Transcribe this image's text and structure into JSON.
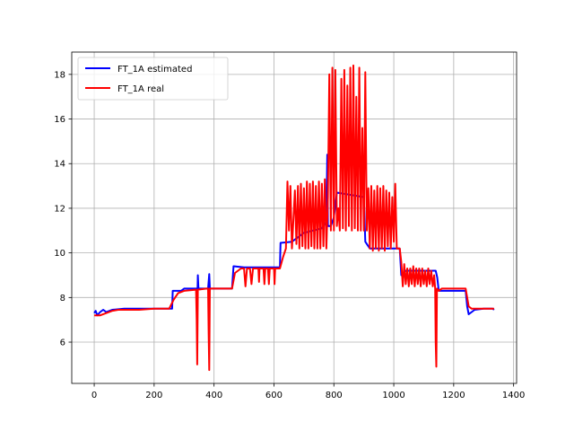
{
  "chart_data": {
    "type": "line",
    "title": "",
    "xlabel": "",
    "ylabel": "",
    "xlim": [
      -75,
      1410
    ],
    "ylim": [
      4.15,
      19.0
    ],
    "xticks": [
      0,
      200,
      400,
      600,
      800,
      1000,
      1200,
      1400
    ],
    "yticks": [
      6,
      8,
      10,
      12,
      14,
      16,
      18
    ],
    "grid": true,
    "legend_position": "upper-left",
    "series": [
      {
        "name": "FT_1A estimated",
        "color": "#0000ff",
        "segments": [
          [
            [
              0,
              7.3
            ],
            [
              5,
              7.4
            ],
            [
              10,
              7.2
            ],
            [
              20,
              7.35
            ],
            [
              30,
              7.45
            ],
            [
              40,
              7.35
            ],
            [
              60,
              7.45
            ],
            [
              100,
              7.5
            ],
            [
              150,
              7.5
            ],
            [
              200,
              7.5
            ],
            [
              255,
              7.5
            ],
            [
              260,
              7.5
            ],
            [
              262,
              8.3
            ],
            [
              290,
              8.3
            ],
            [
              300,
              8.4
            ],
            [
              345,
              8.4
            ],
            [
              346,
              9.0
            ],
            [
              348,
              8.4
            ],
            [
              380,
              8.4
            ],
            [
              384,
              9.05
            ],
            [
              386,
              8.4
            ],
            [
              460,
              8.4
            ],
            [
              465,
              9.4
            ],
            [
              500,
              9.35
            ],
            [
              600,
              9.35
            ],
            [
              620,
              9.35
            ],
            [
              622,
              10.45
            ],
            [
              660,
              10.5
            ],
            [
              700,
              10.9
            ],
            [
              760,
              11.1
            ],
            [
              775,
              11.4
            ],
            [
              778,
              14.4
            ],
            [
              780,
              11.2
            ],
            [
              790,
              11.2
            ],
            [
              800,
              11.6
            ],
            [
              810,
              12.7
            ],
            [
              900,
              12.5
            ],
            [
              905,
              10.5
            ],
            [
              920,
              10.2
            ],
            [
              1000,
              10.2
            ],
            [
              1020,
              10.2
            ],
            [
              1025,
              9.0
            ],
            [
              1040,
              9.2
            ],
            [
              1140,
              9.2
            ],
            [
              1145,
              8.9
            ],
            [
              1150,
              8.3
            ],
            [
              1240,
              8.3
            ],
            [
              1245,
              7.6
            ],
            [
              1250,
              7.25
            ],
            [
              1270,
              7.45
            ],
            [
              1300,
              7.5
            ],
            [
              1330,
              7.5
            ],
            [
              1335,
              7.45
            ]
          ]
        ]
      },
      {
        "name": "FT_1A real",
        "color": "#ff0000",
        "segments": [
          [
            [
              0,
              7.2
            ],
            [
              20,
              7.2
            ],
            [
              40,
              7.3
            ],
            [
              60,
              7.4
            ],
            [
              80,
              7.45
            ],
            [
              100,
              7.45
            ],
            [
              150,
              7.45
            ],
            [
              200,
              7.5
            ],
            [
              250,
              7.5
            ],
            [
              265,
              7.9
            ],
            [
              280,
              8.2
            ],
            [
              300,
              8.3
            ],
            [
              340,
              8.35
            ],
            [
              342,
              7.0
            ],
            [
              344,
              5.0
            ],
            [
              346,
              8.35
            ],
            [
              375,
              8.4
            ],
            [
              380,
              8.4
            ],
            [
              382,
              6.5
            ],
            [
              384,
              4.75
            ],
            [
              386,
              8.4
            ],
            [
              460,
              8.4
            ],
            [
              470,
              9.1
            ],
            [
              490,
              9.3
            ],
            [
              500,
              9.3
            ],
            [
              505,
              8.5
            ],
            [
              510,
              9.3
            ],
            [
              520,
              9.3
            ],
            [
              525,
              8.6
            ],
            [
              530,
              9.3
            ],
            [
              548,
              9.3
            ],
            [
              550,
              8.7
            ],
            [
              552,
              9.3
            ],
            [
              565,
              9.3
            ],
            [
              568,
              8.6
            ],
            [
              571,
              9.3
            ],
            [
              580,
              9.3
            ],
            [
              583,
              8.6
            ],
            [
              586,
              9.3
            ],
            [
              600,
              9.3
            ],
            [
              602,
              8.6
            ],
            [
              604,
              9.3
            ],
            [
              620,
              9.3
            ],
            [
              630,
              9.8
            ],
            [
              640,
              10.2
            ],
            [
              645,
              13.2
            ],
            [
              650,
              11.0
            ],
            [
              655,
              13.0
            ],
            [
              660,
              10.2
            ],
            [
              670,
              12.8
            ],
            [
              675,
              10.4
            ],
            [
              680,
              13.0
            ],
            [
              685,
              10.2
            ],
            [
              690,
              13.1
            ],
            [
              695,
              10.3
            ],
            [
              700,
              12.9
            ],
            [
              705,
              10.2
            ],
            [
              710,
              13.2
            ],
            [
              715,
              10.2
            ],
            [
              720,
              13.1
            ],
            [
              725,
              10.3
            ],
            [
              730,
              13.2
            ],
            [
              735,
              10.2
            ],
            [
              740,
              13.0
            ],
            [
              745,
              10.2
            ],
            [
              750,
              13.2
            ],
            [
              755,
              10.2
            ],
            [
              760,
              13.1
            ],
            [
              765,
              10.3
            ],
            [
              770,
              13.3
            ],
            [
              775,
              10.2
            ],
            [
              780,
              12.5
            ],
            [
              785,
              18.0
            ],
            [
              790,
              11.0
            ],
            [
              795,
              18.3
            ],
            [
              800,
              11.0
            ],
            [
              805,
              18.2
            ],
            [
              810,
              11.2
            ],
            [
              815,
              12.0
            ],
            [
              820,
              11.0
            ],
            [
              825,
              17.8
            ],
            [
              830,
              11.1
            ],
            [
              835,
              18.2
            ],
            [
              840,
              11.0
            ],
            [
              845,
              17.5
            ],
            [
              850,
              11.2
            ],
            [
              855,
              18.3
            ],
            [
              860,
              11.0
            ],
            [
              865,
              18.4
            ],
            [
              870,
              11.1
            ],
            [
              875,
              17.0
            ],
            [
              880,
              11.0
            ],
            [
              885,
              18.3
            ],
            [
              890,
              11.0
            ],
            [
              895,
              15.6
            ],
            [
              900,
              11.0
            ],
            [
              905,
              18.1
            ],
            [
              910,
              11.0
            ],
            [
              915,
              12.9
            ],
            [
              920,
              10.2
            ],
            [
              925,
              13.0
            ],
            [
              930,
              10.1
            ],
            [
              935,
              12.8
            ],
            [
              940,
              10.2
            ],
            [
              945,
              13.0
            ],
            [
              950,
              10.1
            ],
            [
              955,
              12.9
            ],
            [
              960,
              10.2
            ],
            [
              965,
              13.0
            ],
            [
              970,
              10.1
            ],
            [
              975,
              12.8
            ],
            [
              980,
              10.3
            ],
            [
              985,
              12.7
            ],
            [
              990,
              10.2
            ],
            [
              995,
              12.5
            ],
            [
              1000,
              10.5
            ],
            [
              1005,
              13.1
            ],
            [
              1010,
              10.2
            ],
            [
              1020,
              10.2
            ],
            [
              1025,
              9.6
            ],
            [
              1030,
              8.5
            ],
            [
              1035,
              9.5
            ],
            [
              1040,
              8.6
            ],
            [
              1045,
              9.3
            ],
            [
              1050,
              8.5
            ],
            [
              1055,
              9.3
            ],
            [
              1060,
              8.6
            ],
            [
              1065,
              9.4
            ],
            [
              1070,
              8.5
            ],
            [
              1075,
              9.3
            ],
            [
              1080,
              8.6
            ],
            [
              1085,
              9.3
            ],
            [
              1090,
              8.5
            ],
            [
              1095,
              9.3
            ],
            [
              1100,
              8.6
            ],
            [
              1105,
              9.2
            ],
            [
              1110,
              8.5
            ],
            [
              1115,
              9.3
            ],
            [
              1120,
              8.6
            ],
            [
              1125,
              9.2
            ],
            [
              1130,
              8.5
            ],
            [
              1135,
              9.0
            ],
            [
              1138,
              8.4
            ],
            [
              1140,
              6.0
            ],
            [
              1142,
              4.9
            ],
            [
              1144,
              8.4
            ],
            [
              1150,
              8.3
            ],
            [
              1160,
              8.4
            ],
            [
              1200,
              8.4
            ],
            [
              1230,
              8.4
            ],
            [
              1240,
              8.4
            ],
            [
              1250,
              7.6
            ],
            [
              1260,
              7.5
            ],
            [
              1300,
              7.5
            ],
            [
              1335,
              7.5
            ]
          ]
        ]
      }
    ]
  }
}
